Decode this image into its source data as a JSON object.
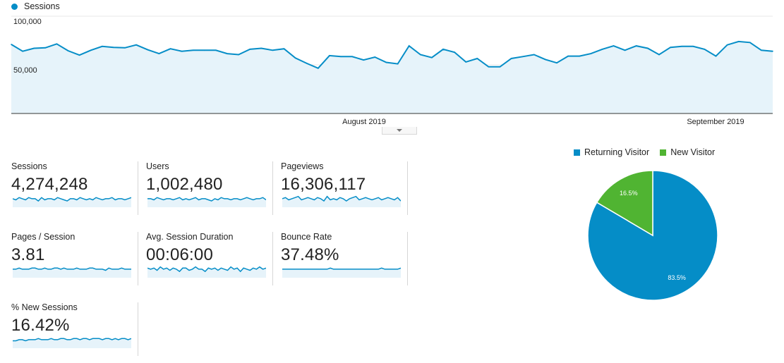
{
  "chart_data": [
    {
      "type": "area",
      "series": [
        {
          "name": "Sessions",
          "values": [
            71000,
            64000,
            67000,
            67500,
            71500,
            64500,
            60000,
            65000,
            69000,
            68000,
            67500,
            70500,
            65500,
            61500,
            66500,
            64000,
            65000,
            65000,
            65000,
            61500,
            60500,
            66000,
            67000,
            65000,
            66500,
            57000,
            51500,
            46500,
            59500,
            58500,
            58500,
            55000,
            58000,
            52500,
            51000,
            69500,
            60500,
            57500,
            66000,
            63000,
            53000,
            56500,
            48000,
            48000,
            56500,
            58500,
            60500,
            55500,
            52000,
            59000,
            59000,
            61500,
            66000,
            69500,
            65000,
            69500,
            67000,
            60500,
            68000,
            69000,
            69000,
            66000,
            59000,
            70500,
            74000,
            73000,
            65000,
            64000
          ],
          "color": "#058dc7"
        }
      ],
      "x_labels": [
        "August 2019",
        "September 2019"
      ],
      "y_ticks": [
        "100,000",
        "50,000"
      ],
      "ylim": [
        0,
        100000
      ],
      "grid": true,
      "legend": "top-left"
    },
    {
      "type": "pie",
      "labels": [
        "Returning Visitor",
        "New Visitor"
      ],
      "values": [
        83.5,
        16.5
      ],
      "value_labels": [
        "83.5%",
        "16.5%"
      ],
      "colors": [
        "#058dc7",
        "#50b432"
      ],
      "legend": "top"
    }
  ],
  "legend_label": "Sessions",
  "series_color": "#058dc7",
  "fill_color": "#e6f3fa",
  "metrics": [
    {
      "label": "Sessions",
      "value": "4,274,248",
      "spark": [
        5,
        4,
        6,
        5,
        4,
        6,
        5,
        5,
        3,
        6,
        4,
        5,
        5,
        4,
        6,
        5,
        4,
        3,
        5,
        5,
        4,
        6,
        5,
        4,
        5,
        4,
        6,
        5,
        4,
        5,
        5,
        6,
        4,
        5,
        5,
        4,
        5,
        6
      ]
    },
    {
      "label": "Users",
      "value": "1,002,480",
      "spark": [
        5,
        5,
        4,
        6,
        5,
        4,
        5,
        5,
        4,
        5,
        6,
        4,
        5,
        4,
        5,
        6,
        4,
        5,
        5,
        4,
        3,
        5,
        4,
        6,
        5,
        5,
        4,
        5,
        5,
        4,
        5,
        6,
        5,
        4,
        5,
        5,
        6,
        4
      ]
    },
    {
      "label": "Pageviews",
      "value": "16,306,117",
      "spark": [
        5,
        6,
        4,
        5,
        6,
        7,
        4,
        5,
        6,
        5,
        4,
        6,
        5,
        3,
        7,
        4,
        5,
        4,
        6,
        5,
        3,
        5,
        6,
        7,
        4,
        5,
        6,
        5,
        4,
        5,
        6,
        4,
        5,
        6,
        5,
        4,
        6,
        3
      ]
    },
    {
      "label": "Pages / Session",
      "value": "3.81",
      "spark": [
        5,
        5,
        6,
        5,
        5,
        5,
        6,
        6,
        5,
        5,
        6,
        5,
        5,
        6,
        6,
        5,
        6,
        5,
        5,
        5,
        6,
        5,
        5,
        5,
        6,
        6,
        5,
        5,
        5,
        4,
        6,
        5,
        5,
        5,
        6,
        5,
        5,
        5
      ]
    },
    {
      "label": "Avg. Session Duration",
      "value": "00:06:00",
      "spark": [
        6,
        5,
        6,
        4,
        7,
        5,
        6,
        4,
        6,
        5,
        3,
        6,
        6,
        4,
        5,
        7,
        5,
        5,
        3,
        6,
        5,
        6,
        4,
        6,
        5,
        4,
        7,
        5,
        6,
        3,
        6,
        5,
        4,
        6,
        5,
        7,
        5,
        6
      ]
    },
    {
      "label": "Bounce Rate",
      "value": "37.48%",
      "spark": [
        5,
        5,
        5,
        5,
        5,
        5,
        5,
        5,
        5,
        5,
        5,
        5,
        5,
        5,
        5,
        6,
        5,
        5,
        5,
        5,
        5,
        5,
        5,
        5,
        5,
        5,
        5,
        5,
        5,
        5,
        5,
        6,
        5,
        5,
        5,
        5,
        5,
        6
      ]
    },
    {
      "label": "% New Sessions",
      "value": "16.42%",
      "spark": [
        4,
        4,
        5,
        5,
        4,
        5,
        5,
        5,
        6,
        5,
        5,
        5,
        6,
        5,
        5,
        6,
        6,
        5,
        5,
        6,
        6,
        5,
        6,
        6,
        5,
        6,
        6,
        6,
        5,
        6,
        6,
        5,
        6,
        5,
        6,
        6,
        5,
        6
      ]
    }
  ]
}
